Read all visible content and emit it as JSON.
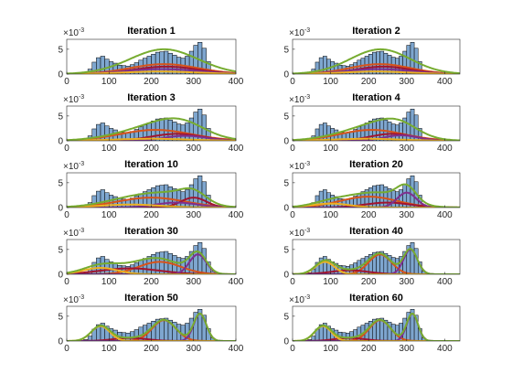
{
  "y_scale_label": {
    "base": "×10",
    "power": "-3"
  },
  "histogram": {
    "color": "#7ea6cf",
    "bins": [
      40,
      50,
      60,
      70,
      80,
      90,
      100,
      110,
      120,
      130,
      140,
      150,
      160,
      170,
      180,
      190,
      200,
      210,
      220,
      230,
      240,
      250,
      260,
      270,
      280,
      290,
      300,
      310,
      320,
      330,
      340,
      350
    ],
    "counts": [
      0.3,
      1.0,
      2.4,
      3.3,
      3.6,
      3.0,
      2.5,
      2.2,
      1.8,
      1.7,
      1.6,
      1.9,
      2.3,
      2.8,
      3.2,
      3.6,
      4.0,
      4.4,
      4.5,
      4.6,
      4.2,
      3.8,
      3.4,
      3.2,
      3.6,
      4.6,
      5.8,
      6.4,
      5.2,
      2.5,
      0.6
    ]
  },
  "total_color": "#77ac30",
  "chart_data": [
    {
      "type": "histogram",
      "title": "Iteration 1",
      "xlim": [
        0,
        400
      ],
      "xticks": [
        0,
        100,
        200,
        300,
        400
      ],
      "ylim": [
        0,
        7
      ],
      "yticks": [
        0,
        5
      ],
      "components": [
        {
          "color": "#d95319",
          "mean": 230,
          "sd": 80,
          "peak": 2.0
        },
        {
          "color": "#a2142f",
          "mean": 235,
          "sd": 75,
          "peak": 1.5
        },
        {
          "color": "#7e2f8e",
          "mean": 225,
          "sd": 85,
          "peak": 1.0
        },
        {
          "color": "#edb120",
          "mean": 220,
          "sd": 90,
          "peak": 0.5
        }
      ]
    },
    {
      "type": "histogram",
      "title": "Iteration 2",
      "xlim": [
        0,
        440
      ],
      "xticks": [
        0,
        100,
        200,
        300,
        400
      ],
      "ylim": [
        0,
        7
      ],
      "yticks": [
        0,
        5
      ],
      "components": [
        {
          "color": "#d95319",
          "mean": 230,
          "sd": 80,
          "peak": 2.0
        },
        {
          "color": "#a2142f",
          "mean": 238,
          "sd": 72,
          "peak": 1.5
        },
        {
          "color": "#7e2f8e",
          "mean": 225,
          "sd": 85,
          "peak": 1.0
        },
        {
          "color": "#edb120",
          "mean": 218,
          "sd": 90,
          "peak": 0.5
        }
      ]
    },
    {
      "type": "histogram",
      "title": "Iteration 3",
      "xlim": [
        0,
        400
      ],
      "xticks": [
        0,
        100,
        200,
        300,
        400
      ],
      "ylim": [
        0,
        7
      ],
      "yticks": [
        0,
        5
      ],
      "components": [
        {
          "color": "#d95319",
          "mean": 210,
          "sd": 85,
          "peak": 2.2
        },
        {
          "color": "#a2142f",
          "mean": 260,
          "sd": 60,
          "peak": 1.4
        },
        {
          "color": "#7e2f8e",
          "mean": 280,
          "sd": 50,
          "peak": 1.0
        },
        {
          "color": "#edb120",
          "mean": 200,
          "sd": 90,
          "peak": 0.4
        }
      ]
    },
    {
      "type": "histogram",
      "title": "Iteration 4",
      "xlim": [
        0,
        440
      ],
      "xticks": [
        0,
        100,
        200,
        300,
        400
      ],
      "ylim": [
        0,
        7
      ],
      "yticks": [
        0,
        5
      ],
      "components": [
        {
          "color": "#d95319",
          "mean": 208,
          "sd": 85,
          "peak": 2.2
        },
        {
          "color": "#a2142f",
          "mean": 262,
          "sd": 58,
          "peak": 1.4
        },
        {
          "color": "#7e2f8e",
          "mean": 285,
          "sd": 45,
          "peak": 1.1
        },
        {
          "color": "#edb120",
          "mean": 195,
          "sd": 90,
          "peak": 0.4
        }
      ]
    },
    {
      "type": "histogram",
      "title": "Iteration 10",
      "xlim": [
        0,
        400
      ],
      "xticks": [
        0,
        100,
        200,
        300,
        400
      ],
      "ylim": [
        0,
        7
      ],
      "yticks": [
        0,
        5
      ],
      "components": [
        {
          "color": "#d95319",
          "mean": 200,
          "sd": 80,
          "peak": 2.0
        },
        {
          "color": "#a2142f",
          "mean": 300,
          "sd": 30,
          "peak": 2.0
        },
        {
          "color": "#7e2f8e",
          "mean": 260,
          "sd": 50,
          "peak": 1.0
        },
        {
          "color": "#edb120",
          "mean": 150,
          "sd": 70,
          "peak": 0.6
        }
      ]
    },
    {
      "type": "histogram",
      "title": "Iteration 20",
      "xlim": [
        0,
        440
      ],
      "xticks": [
        0,
        100,
        200,
        300,
        400
      ],
      "ylim": [
        0,
        7
      ],
      "yticks": [
        0,
        5
      ],
      "components": [
        {
          "color": "#d95319",
          "mean": 200,
          "sd": 75,
          "peak": 2.2
        },
        {
          "color": "#a2142f",
          "mean": 250,
          "sd": 60,
          "peak": 1.0
        },
        {
          "color": "#7e2f8e",
          "mean": 300,
          "sd": 25,
          "peak": 3.0
        },
        {
          "color": "#edb120",
          "mean": 100,
          "sd": 50,
          "peak": 0.8
        }
      ]
    },
    {
      "type": "histogram",
      "title": "Iteration 30",
      "xlim": [
        0,
        400
      ],
      "xticks": [
        0,
        100,
        200,
        300,
        400
      ],
      "ylim": [
        0,
        7
      ],
      "yticks": [
        0,
        5
      ],
      "components": [
        {
          "color": "#d95319",
          "mean": 220,
          "sd": 50,
          "peak": 2.5
        },
        {
          "color": "#a2142f",
          "mean": 150,
          "sd": 70,
          "peak": 1.2
        },
        {
          "color": "#7e2f8e",
          "mean": 310,
          "sd": 20,
          "peak": 4.0
        },
        {
          "color": "#edb120",
          "mean": 80,
          "sd": 40,
          "peak": 1.3
        }
      ]
    },
    {
      "type": "histogram",
      "title": "Iteration 40",
      "xlim": [
        0,
        440
      ],
      "xticks": [
        0,
        100,
        200,
        300,
        400
      ],
      "ylim": [
        0,
        7
      ],
      "yticks": [
        0,
        5
      ],
      "components": [
        {
          "color": "#d95319",
          "mean": 230,
          "sd": 30,
          "peak": 4.0
        },
        {
          "color": "#a2142f",
          "mean": 150,
          "sd": 50,
          "peak": 0.8
        },
        {
          "color": "#7e2f8e",
          "mean": 310,
          "sd": 18,
          "peak": 5.0
        },
        {
          "color": "#edb120",
          "mean": 85,
          "sd": 25,
          "peak": 2.5
        }
      ]
    },
    {
      "type": "histogram",
      "title": "Iteration 50",
      "xlim": [
        0,
        400
      ],
      "xticks": [
        0,
        100,
        200,
        300,
        400
      ],
      "ylim": [
        0,
        7
      ],
      "yticks": [
        0,
        5
      ],
      "components": [
        {
          "color": "#d95319",
          "mean": 230,
          "sd": 28,
          "peak": 4.2
        },
        {
          "color": "#a2142f",
          "mean": 150,
          "sd": 40,
          "peak": 0.6
        },
        {
          "color": "#7e2f8e",
          "mean": 315,
          "sd": 15,
          "peak": 5.5
        },
        {
          "color": "#edb120",
          "mean": 80,
          "sd": 22,
          "peak": 3.0
        }
      ]
    },
    {
      "type": "histogram",
      "title": "Iteration 60",
      "xlim": [
        0,
        440
      ],
      "xticks": [
        0,
        100,
        200,
        300,
        400
      ],
      "ylim": [
        0,
        7
      ],
      "yticks": [
        0,
        5
      ],
      "components": [
        {
          "color": "#d95319",
          "mean": 230,
          "sd": 28,
          "peak": 4.2
        },
        {
          "color": "#a2142f",
          "mean": 150,
          "sd": 40,
          "peak": 0.6
        },
        {
          "color": "#7e2f8e",
          "mean": 315,
          "sd": 15,
          "peak": 5.5
        },
        {
          "color": "#edb120",
          "mean": 80,
          "sd": 22,
          "peak": 3.0
        }
      ]
    }
  ]
}
